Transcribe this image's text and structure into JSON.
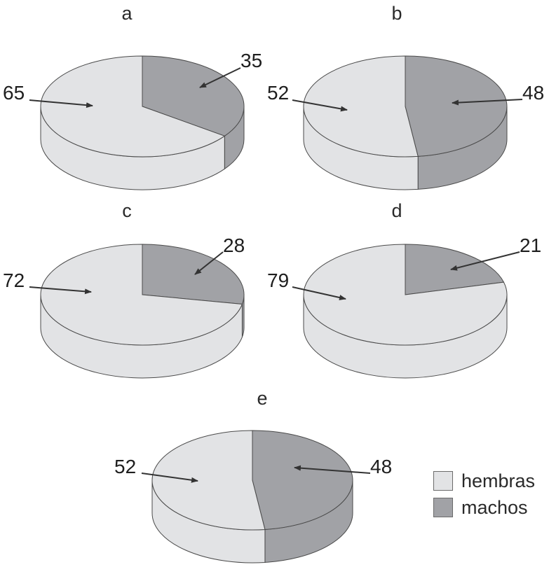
{
  "colors": {
    "hembras": "#e2e3e5",
    "machos": "#a1a2a6",
    "outline": "#4a4a4a",
    "arrow": "#333333"
  },
  "legend": [
    {
      "key": "hembras",
      "label": "hembras"
    },
    {
      "key": "machos",
      "label": "machos"
    }
  ],
  "chart_data": [
    {
      "type": "pie",
      "panel": "a",
      "categories": [
        "hembras",
        "machos"
      ],
      "values": [
        65,
        35
      ]
    },
    {
      "type": "pie",
      "panel": "b",
      "categories": [
        "hembras",
        "machos"
      ],
      "values": [
        52,
        48
      ]
    },
    {
      "type": "pie",
      "panel": "c",
      "categories": [
        "hembras",
        "machos"
      ],
      "values": [
        72,
        28
      ]
    },
    {
      "type": "pie",
      "panel": "d",
      "categories": [
        "hembras",
        "machos"
      ],
      "values": [
        79,
        21
      ]
    },
    {
      "type": "pie",
      "panel": "e",
      "categories": [
        "hembras",
        "machos"
      ],
      "values": [
        52,
        48
      ]
    }
  ]
}
